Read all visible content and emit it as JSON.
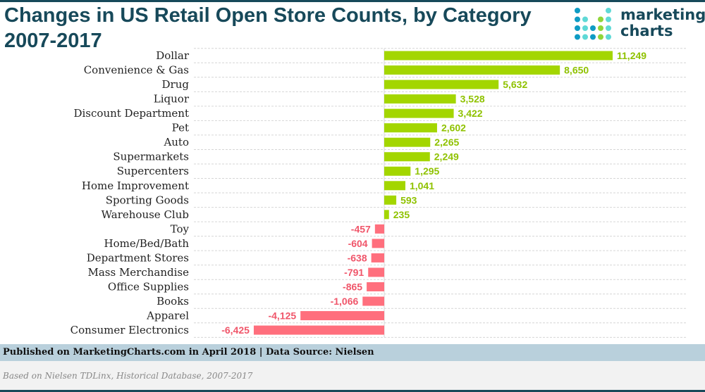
{
  "header": {
    "title": "Changes in US Retail Open Store Counts, by Category 2007-2017",
    "logo_line1": "marketing",
    "logo_line2": "charts"
  },
  "footer": {
    "published": "Published on MarketingCharts.com in April 2018 | Data Source: Nielsen",
    "note": "Based on Nielsen TDLinx, Historical Database, 2007-2017"
  },
  "colors": {
    "positive": "#a3d600",
    "negative": "#ff6f7d",
    "title": "#17495a",
    "positive_label": "#8fc200",
    "negative_label": "#f0566a"
  },
  "chart_data": {
    "type": "bar",
    "orientation": "horizontal",
    "title": "Changes in US Retail Open Store Counts, by Category 2007-2017",
    "categories": [
      "Dollar",
      "Convenience & Gas",
      "Drug",
      "Liquor",
      "Discount Department",
      "Pet",
      "Auto",
      "Supermarkets",
      "Supercenters",
      "Home Improvement",
      "Sporting Goods",
      "Warehouse Club",
      "Toy",
      "Home/Bed/Bath",
      "Department Stores",
      "Mass Merchandise",
      "Office Supplies",
      "Books",
      "Apparel",
      "Consumer Electronics"
    ],
    "values": [
      11249,
      8650,
      5632,
      3528,
      3422,
      2602,
      2265,
      2249,
      1295,
      1041,
      593,
      235,
      -457,
      -604,
      -638,
      -791,
      -865,
      -1066,
      -4125,
      -6425
    ],
    "labels": [
      "11,249",
      "8,650",
      "5,632",
      "3,528",
      "3,422",
      "2,602",
      "2,265",
      "2,249",
      "1,295",
      "1,041",
      "593",
      "235",
      "-457",
      "-604",
      "-638",
      "-791",
      "-865",
      "-1,066",
      "-4,125",
      "-6,425"
    ],
    "grid": true,
    "legend": "none"
  }
}
